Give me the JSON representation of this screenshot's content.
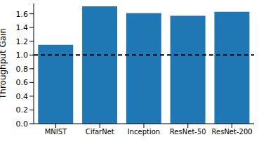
{
  "chart_data": {
    "type": "bar",
    "y_label": "Throughput Gain",
    "categories": [
      "MNIST",
      "CifarNet",
      "Inception",
      "ResNet-50",
      "ResNet-200"
    ],
    "values": [
      1.15,
      1.71,
      1.61,
      1.57,
      1.63
    ],
    "color": "#1f77b4",
    "ylim": [
      0,
      1.75
    ],
    "yticks": [
      {
        "value": 0,
        "label": "0.0"
      },
      {
        "value": 0.2,
        "label": "0.2"
      },
      {
        "value": 0.4,
        "label": "0.4"
      },
      {
        "value": 0.6,
        "label": "0.6"
      },
      {
        "value": 0.8,
        "label": "0.8"
      },
      {
        "value": 1.0,
        "label": "1.0"
      },
      {
        "value": 1.2,
        "label": "1.2"
      },
      {
        "value": 1.4,
        "label": "1.4"
      },
      {
        "value": 1.6,
        "label": "1.6"
      }
    ],
    "baseline": 1.0,
    "grid": false
  }
}
